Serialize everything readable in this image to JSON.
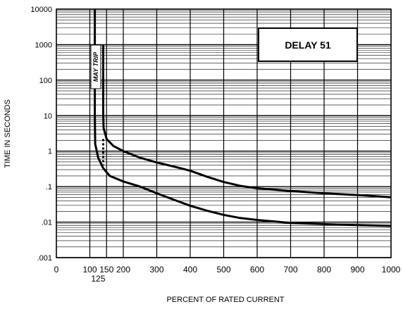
{
  "chart_data": {
    "type": "line",
    "title": "DELAY 51",
    "xlabel": "PERCENT OF RATED CURRENT",
    "ylabel": "TIME IN SECONDS",
    "xlim": [
      0,
      1000
    ],
    "ylim": [
      0.001,
      10000
    ],
    "yscale": "log",
    "grid": true,
    "x_ticks": [
      0,
      100,
      150,
      200,
      300,
      400,
      500,
      600,
      700,
      800,
      900,
      1000
    ],
    "x_tick_labels": [
      "0",
      "100",
      "150",
      "200",
      "300",
      "400",
      "500",
      "600",
      "700",
      "800",
      "900",
      "1000"
    ],
    "x_extra_tick": {
      "value": 125,
      "label": "125"
    },
    "y_ticks": [
      0.001,
      0.01,
      0.1,
      1,
      10,
      100,
      1000,
      10000
    ],
    "y_tick_labels": [
      ".001",
      ".01",
      ".1",
      "1",
      "10",
      "100",
      "1000",
      "10000"
    ],
    "annotation": "MAY TRIP",
    "series": [
      {
        "values": [
          {
            "x": 140,
            "y": 1000
          },
          {
            "x": 140,
            "y": 100
          },
          {
            "x": 140,
            "y": 10
          },
          {
            "x": 141,
            "y": 4.5
          },
          {
            "x": 150,
            "y": 2.2
          },
          {
            "x": 170,
            "y": 1.4
          },
          {
            "x": 200,
            "y": 1.0
          },
          {
            "x": 250,
            "y": 0.65
          },
          {
            "x": 300,
            "y": 0.48
          },
          {
            "x": 350,
            "y": 0.37
          },
          {
            "x": 400,
            "y": 0.28
          },
          {
            "x": 450,
            "y": 0.19
          },
          {
            "x": 500,
            "y": 0.135
          },
          {
            "x": 550,
            "y": 0.105
          },
          {
            "x": 600,
            "y": 0.09
          },
          {
            "x": 700,
            "y": 0.075
          },
          {
            "x": 800,
            "y": 0.065
          },
          {
            "x": 900,
            "y": 0.058
          },
          {
            "x": 1000,
            "y": 0.05
          }
        ]
      },
      {
        "values": [
          {
            "x": 115,
            "y": 10000
          },
          {
            "x": 115,
            "y": 100
          },
          {
            "x": 115,
            "y": 10
          },
          {
            "x": 116,
            "y": 1.6
          },
          {
            "x": 125,
            "y": 0.65
          },
          {
            "x": 140,
            "y": 0.33
          },
          {
            "x": 160,
            "y": 0.2
          },
          {
            "x": 200,
            "y": 0.14
          },
          {
            "x": 250,
            "y": 0.1
          },
          {
            "x": 300,
            "y": 0.065
          },
          {
            "x": 350,
            "y": 0.043
          },
          {
            "x": 400,
            "y": 0.029
          },
          {
            "x": 450,
            "y": 0.021
          },
          {
            "x": 500,
            "y": 0.016
          },
          {
            "x": 550,
            "y": 0.013
          },
          {
            "x": 600,
            "y": 0.0115
          },
          {
            "x": 700,
            "y": 0.0095
          },
          {
            "x": 800,
            "y": 0.0088
          },
          {
            "x": 900,
            "y": 0.0082
          },
          {
            "x": 1000,
            "y": 0.0078
          }
        ]
      }
    ],
    "dashed_segment": [
      {
        "x": 140,
        "y": 2.2
      },
      {
        "x": 140,
        "y": 0.4
      }
    ]
  }
}
